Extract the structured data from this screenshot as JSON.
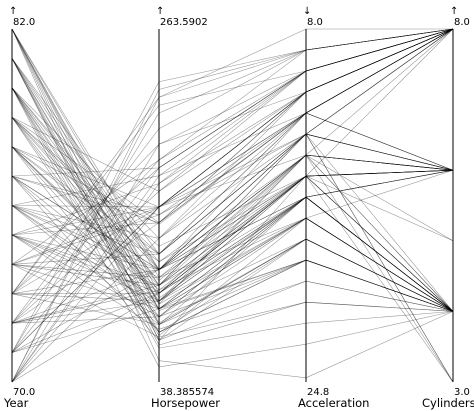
{
  "chart_data": {
    "type": "parallel-coordinates",
    "title": "",
    "axes": [
      {
        "name": "Year",
        "max_label": "82.0",
        "min_label": "70.0",
        "min": 70,
        "max": 82,
        "arrow": "↑"
      },
      {
        "name": "Horsepower",
        "max_label": "263.5902",
        "min_label": "38.385574",
        "min": 38.385574,
        "max": 263.5902,
        "arrow": "↑"
      },
      {
        "name": "Acceleration",
        "max_label": "8.0",
        "min_label": "24.8",
        "min": 8.0,
        "max": 24.8,
        "arrow": "↓",
        "inverted": true
      },
      {
        "name": "Cylinders",
        "max_label": "8.0",
        "min_label": "3.0",
        "min": 3,
        "max": 8,
        "arrow": "↑"
      }
    ],
    "records": [
      [
        82,
        75,
        16,
        4
      ],
      [
        82,
        95,
        15,
        4
      ],
      [
        82,
        88,
        17,
        4
      ],
      [
        82,
        110,
        13,
        6
      ],
      [
        82,
        65,
        18,
        4
      ],
      [
        82,
        105,
        14,
        6
      ],
      [
        81,
        70,
        19,
        4
      ],
      [
        81,
        88,
        14,
        4
      ],
      [
        81,
        120,
        12,
        6
      ],
      [
        81,
        65,
        15,
        4
      ],
      [
        81,
        100,
        13,
        4
      ],
      [
        81,
        85,
        16,
        4
      ],
      [
        80,
        68,
        17,
        4
      ],
      [
        80,
        90,
        14,
        4
      ],
      [
        80,
        110,
        12,
        6
      ],
      [
        80,
        75,
        19,
        4
      ],
      [
        80,
        130,
        11,
        8
      ],
      [
        80,
        85,
        16,
        4
      ],
      [
        79,
        140,
        11,
        8
      ],
      [
        79,
        90,
        15,
        4
      ],
      [
        79,
        110,
        13,
        6
      ],
      [
        79,
        70,
        18,
        4
      ],
      [
        79,
        160,
        10,
        8
      ],
      [
        79,
        80,
        16,
        4
      ],
      [
        78,
        100,
        14,
        6
      ],
      [
        78,
        150,
        11,
        8
      ],
      [
        78,
        85,
        17,
        4
      ],
      [
        78,
        120,
        12,
        6
      ],
      [
        78,
        70,
        19,
        4
      ],
      [
        78,
        95,
        15,
        6
      ],
      [
        77,
        110,
        14,
        6
      ],
      [
        77,
        175,
        10,
        8
      ],
      [
        77,
        80,
        16,
        4
      ],
      [
        77,
        140,
        11,
        8
      ],
      [
        77,
        95,
        15,
        6
      ],
      [
        77,
        65,
        20,
        4
      ],
      [
        76,
        150,
        11,
        8
      ],
      [
        76,
        90,
        16,
        4
      ],
      [
        76,
        105,
        15,
        6
      ],
      [
        76,
        170,
        10,
        8
      ],
      [
        76,
        75,
        18,
        4
      ],
      [
        76,
        120,
        13,
        6
      ],
      [
        75,
        110,
        15,
        6
      ],
      [
        75,
        165,
        10,
        8
      ],
      [
        75,
        80,
        17,
        4
      ],
      [
        75,
        140,
        12,
        8
      ],
      [
        75,
        95,
        16,
        6
      ],
      [
        75,
        72,
        20,
        4
      ],
      [
        74,
        150,
        12,
        8
      ],
      [
        74,
        85,
        17,
        4
      ],
      [
        74,
        100,
        15,
        6
      ],
      [
        74,
        180,
        9,
        8
      ],
      [
        74,
        67,
        21,
        4
      ],
      [
        74,
        120,
        13,
        6
      ],
      [
        73,
        175,
        10,
        8
      ],
      [
        73,
        90,
        16,
        4
      ],
      [
        73,
        150,
        11,
        8
      ],
      [
        73,
        110,
        14,
        6
      ],
      [
        73,
        220,
        9,
        8
      ],
      [
        73,
        75,
        18,
        4
      ],
      [
        72,
        160,
        11,
        8
      ],
      [
        72,
        90,
        17,
        4
      ],
      [
        72,
        200,
        9,
        8
      ],
      [
        72,
        100,
        15,
        6
      ],
      [
        72,
        80,
        19,
        4
      ],
      [
        72,
        140,
        12,
        8
      ],
      [
        71,
        150,
        12,
        8
      ],
      [
        71,
        95,
        16,
        4
      ],
      [
        71,
        210,
        9,
        8
      ],
      [
        71,
        110,
        14,
        6
      ],
      [
        71,
        85,
        18,
        4
      ],
      [
        71,
        175,
        10,
        8
      ],
      [
        70,
        165,
        11,
        8
      ],
      [
        70,
        130,
        12,
        8
      ],
      [
        70,
        225,
        9,
        8
      ],
      [
        70,
        95,
        15,
        4
      ],
      [
        70,
        150,
        11,
        8
      ],
      [
        70,
        190,
        10,
        8
      ],
      [
        70,
        220,
        8,
        8
      ],
      [
        71,
        230,
        9,
        8
      ],
      [
        73,
        215,
        10,
        8
      ],
      [
        72,
        180,
        10,
        8
      ],
      [
        74,
        145,
        12,
        8
      ],
      [
        76,
        130,
        13,
        8
      ],
      [
        78,
        115,
        14,
        6
      ],
      [
        79,
        120,
        13,
        6
      ],
      [
        80,
        60,
        22,
        4
      ],
      [
        81,
        62,
        21,
        4
      ],
      [
        82,
        52,
        24.6,
        4
      ],
      [
        80,
        48,
        23,
        4
      ],
      [
        73,
        95,
        14,
        3
      ],
      [
        77,
        110,
        13,
        3
      ],
      [
        80,
        100,
        13,
        3
      ],
      [
        72,
        97,
        15,
        3
      ],
      [
        75,
        90,
        15,
        5
      ],
      [
        79,
        103,
        14,
        5
      ],
      [
        82,
        84,
        19,
        4
      ],
      [
        81,
        110,
        16,
        6
      ],
      [
        78,
        139,
        12,
        8
      ],
      [
        77,
        145,
        13,
        8
      ],
      [
        75,
        150,
        14,
        8
      ],
      [
        74,
        105,
        17,
        6
      ],
      [
        76,
        85,
        19,
        4
      ],
      [
        73,
        190,
        11,
        8
      ],
      [
        71,
        150,
        13,
        8
      ],
      [
        70,
        170,
        12,
        8
      ],
      [
        72,
        110,
        15,
        6
      ],
      [
        79,
        125,
        15,
        8
      ],
      [
        81,
        76,
        18,
        4
      ],
      [
        82,
        92,
        16,
        4
      ],
      [
        80,
        115,
        15,
        6
      ],
      [
        78,
        97,
        17,
        4
      ],
      [
        75,
        100,
        16,
        6
      ],
      [
        76,
        110,
        16,
        6
      ]
    ]
  }
}
